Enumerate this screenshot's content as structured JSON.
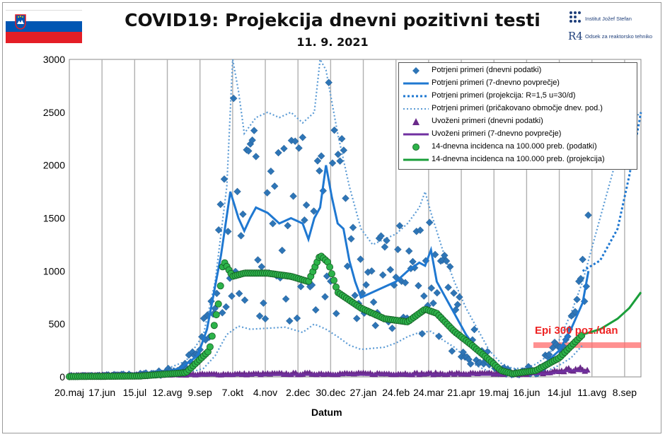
{
  "title": "COVID19: Projekcija dnevni pozitivni testi",
  "subtitle": "11. 9. 2021",
  "flag": {
    "colors": [
      "#ffffff",
      "#0056b3",
      "#e41e26"
    ],
    "icon": "slovenian-flag-icon"
  },
  "logos": {
    "ijs_text": "Institut Jožef Stefan",
    "r4_glyph": "R4",
    "r4_text": "Odsek za reaktorsko tehniko"
  },
  "chart_data": {
    "type": "scatter",
    "xlabel": "Datum",
    "ylabel": "",
    "ylim": [
      0,
      3000
    ],
    "yticks": [
      0,
      500,
      1000,
      1500,
      2000,
      2500,
      3000
    ],
    "xticks": [
      "20.maj",
      "17.jun",
      "15.jul",
      "12.avg",
      "9.sep",
      "7.okt",
      "4.nov",
      "2.dec",
      "30.dec",
      "27.jan",
      "24.feb",
      "24.mar",
      "21.apr",
      "19.maj",
      "16.jun",
      "14.jul",
      "11.avg",
      "8.sep"
    ],
    "x_units": "days since 20.maj 2020",
    "x_range": [
      0,
      490
    ],
    "grid": "vertical",
    "legend_position": "top-right",
    "legend": [
      "Potrjeni primeri (dnevni podatki)",
      "Potrjeni primeri (7-dnevno povprečje)",
      "Potrjeni primeri (projekcija: R=1,5 u=30/d)",
      "Potrjeni primeri (pričakovano območje dnev. pod.)",
      "Uvoženi primeri (dnevni podatki)",
      "Uvoženi primeri (7-dnevno povprečje)",
      "14-dnevna incidenca na 100.000 preb. (podatki)",
      "14-dnevna incidenca na 100.000 preb. (projekcija)"
    ],
    "colors": {
      "confirmed": "#2e75b6",
      "confirmed_avg": "#1f78d1",
      "range": "#5b9bd5",
      "imported": "#6a2a8a",
      "imported_avg": "#7030a0",
      "incidence": "#1a9e3a",
      "incidence_fill": "#2db34a",
      "epi": "#ff6b6b"
    },
    "series": [
      {
        "name": "Potrjeni primeri (7-dnevno povprečje)",
        "x": [
          0,
          20,
          40,
          60,
          80,
          95,
          110,
          118,
          124,
          130,
          138,
          145,
          150,
          155,
          160,
          170,
          180,
          190,
          200,
          205,
          210,
          215,
          220,
          225,
          230,
          235,
          240,
          245,
          250,
          260,
          270,
          280,
          290,
          300,
          305,
          310,
          315,
          320,
          330,
          340,
          350,
          360,
          370,
          380,
          390,
          400,
          410,
          420,
          430,
          440,
          445
        ],
        "y": [
          8,
          10,
          15,
          20,
          40,
          80,
          200,
          450,
          800,
          1150,
          1750,
          1500,
          1380,
          1500,
          1600,
          1550,
          1450,
          1500,
          1450,
          1300,
          1500,
          1600,
          2000,
          1700,
          1450,
          1400,
          1100,
          900,
          750,
          800,
          850,
          900,
          1000,
          1080,
          1050,
          1200,
          900,
          800,
          600,
          400,
          250,
          130,
          60,
          40,
          50,
          80,
          150,
          250,
          450,
          700,
          1000
        ]
      },
      {
        "name": "Potrjeni primeri (projekcija: R=1,5 u=30/d)",
        "x": [
          440,
          455,
          470,
          480,
          490
        ],
        "y": [
          1000,
          1100,
          1400,
          1900,
          2500
        ]
      },
      {
        "name": "Potrjeni primeri (pričakovano območje dnev. pod.) upper",
        "x": [
          0,
          40,
          80,
          100,
          115,
          125,
          135,
          140,
          145,
          150,
          160,
          170,
          180,
          190,
          200,
          210,
          215,
          220,
          230,
          240,
          250,
          260,
          270,
          280,
          290,
          300,
          305,
          310,
          320,
          330,
          340,
          350,
          360,
          370,
          380,
          390,
          400,
          410,
          420,
          430,
          440,
          450,
          460,
          470,
          480,
          490
        ],
        "y": [
          15,
          20,
          60,
          150,
          400,
          900,
          1800,
          3000,
          2700,
          2300,
          2450,
          2500,
          2450,
          2500,
          2400,
          2500,
          3000,
          2900,
          2300,
          1800,
          1400,
          1250,
          1300,
          1350,
          1450,
          1600,
          1750,
          1550,
          1200,
          900,
          650,
          450,
          250,
          130,
          80,
          80,
          120,
          200,
          350,
          600,
          900,
          1300,
          1700,
          2100,
          2400,
          2500
        ]
      },
      {
        "name": "Potrjeni primeri (pričakovano območje dnev. pod.) lower",
        "x": [
          0,
          40,
          80,
          100,
          115,
          125,
          135,
          145,
          155,
          170,
          185,
          200,
          210,
          220,
          230,
          240,
          250,
          260,
          270,
          280,
          290,
          300,
          310,
          320,
          330,
          340,
          350,
          360,
          370,
          380,
          390,
          400,
          410,
          420,
          430,
          440
        ],
        "y": [
          2,
          5,
          10,
          30,
          80,
          200,
          400,
          480,
          450,
          460,
          470,
          420,
          500,
          450,
          380,
          300,
          260,
          270,
          280,
          320,
          380,
          420,
          430,
          350,
          280,
          180,
          100,
          50,
          20,
          15,
          20,
          30,
          60,
          110,
          180,
          300
        ]
      },
      {
        "name": "Uvoženi primeri (7-dnevno povprečje)",
        "x": [
          0,
          60,
          120,
          200,
          300,
          380,
          410,
          430,
          445
        ],
        "y": [
          5,
          8,
          15,
          20,
          20,
          20,
          30,
          60,
          50
        ]
      },
      {
        "name": "14-dnevna incidenca na 100.000 preb. (projekcija)",
        "x": [
          440,
          455,
          470,
          480,
          490
        ],
        "y": [
          400,
          450,
          550,
          650,
          800
        ]
      }
    ]
  },
  "epi_label": "Epi 300 poz./dan",
  "epi_value": 300
}
